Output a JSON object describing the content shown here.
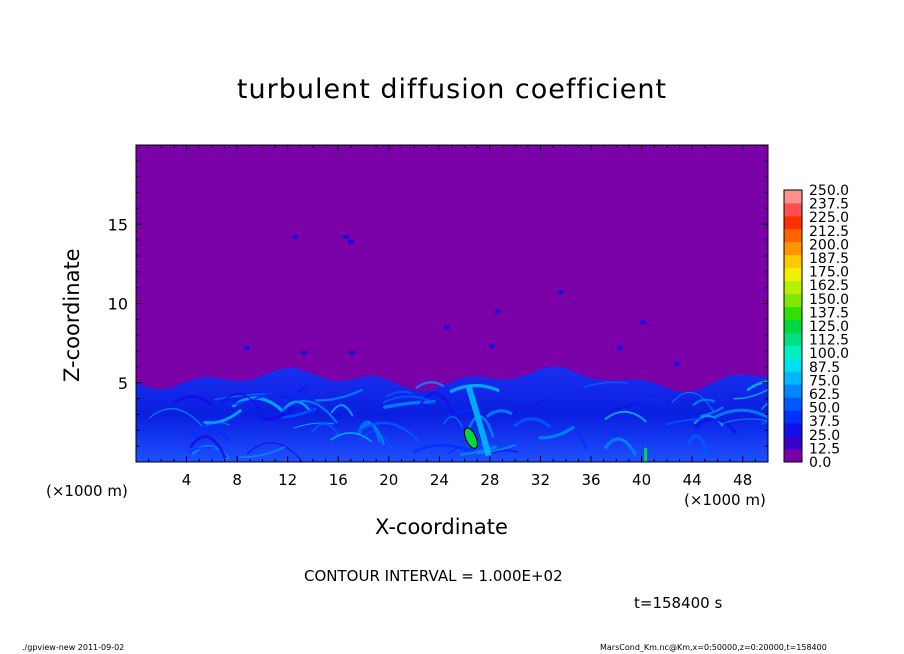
{
  "figure": {
    "title": "turbulent diffusion coefficient",
    "xlabel": "X-coordinate",
    "ylabel": "Z-coordinate",
    "x_unit_left": "(×1000 m)",
    "x_unit_right": "(×1000 m)",
    "contour_interval": "CONTOUR INTERVAL = 1.000E+02",
    "time_label": "t=158400 s",
    "footer_left": "./gpview-new  2011-09-02",
    "footer_right": "MarsCond_Km.nc@Km,x=0:50000,z=0:20000,t=158400"
  },
  "chart_data": {
    "type": "heatmap",
    "title": "turbulent diffusion coefficient",
    "xlabel": "X-coordinate",
    "ylabel": "Z-coordinate",
    "x_unit": "(×1000 m)",
    "xlim": [
      0,
      50
    ],
    "ylim": [
      0,
      20
    ],
    "x_ticks": [
      4,
      8,
      12,
      16,
      20,
      24,
      28,
      32,
      36,
      40,
      44,
      48
    ],
    "y_ticks": [
      5,
      10,
      15
    ],
    "boundary_layer_top_approx": 5.5,
    "max_region_x_approx": 27,
    "colorbar": {
      "levels": [
        0.0,
        12.5,
        25.0,
        37.5,
        50.0,
        62.5,
        75.0,
        87.5,
        100.0,
        112.5,
        125.0,
        137.5,
        150.0,
        162.5,
        175.0,
        187.5,
        200.0,
        212.5,
        225.0,
        237.5,
        250.0
      ],
      "labels": [
        "0.0",
        "12.5",
        "25.0",
        "37.5",
        "50.0",
        "62.5",
        "75.0",
        "87.5",
        "100.0",
        "112.5",
        "125.0",
        "137.5",
        "150.0",
        "162.5",
        "175.0",
        "187.5",
        "200.0",
        "212.5",
        "225.0",
        "237.5",
        "250.0"
      ],
      "colors": [
        "#7a00a8",
        "#3a00c8",
        "#1010e8",
        "#0030ff",
        "#0058ff",
        "#0088ff",
        "#00b8ff",
        "#00e0f0",
        "#00f0c0",
        "#00e080",
        "#00d840",
        "#30e000",
        "#80e800",
        "#b8f000",
        "#f0f000",
        "#ffc800",
        "#ff9600",
        "#ff6400",
        "#ff3000",
        "#ff5050",
        "#ff9090"
      ]
    },
    "contour_interval": 100,
    "time_s": 158400
  },
  "colors": {
    "background": "#7a00a8",
    "frame": "#000000"
  }
}
